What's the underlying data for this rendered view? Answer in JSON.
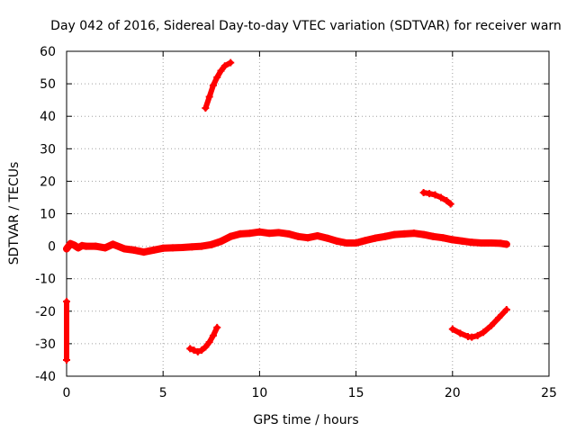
{
  "chart_data": {
    "type": "scatter",
    "title": "Day 042 of 2016, Sidereal Day-to-day VTEC variation (SDTVAR) for receiver warn",
    "xlabel": "GPS time / hours",
    "ylabel": "SDTVAR / TECUs",
    "xlim": [
      0,
      25
    ],
    "ylim": [
      -40,
      60
    ],
    "xticks": [
      0,
      5,
      10,
      15,
      20,
      25
    ],
    "yticks": [
      -40,
      -30,
      -20,
      -10,
      0,
      10,
      20,
      30,
      40,
      50,
      60
    ],
    "grid": true,
    "legend": "none",
    "marker_color": "#ff0000",
    "series": [
      {
        "name": "main-band",
        "x": [
          0.0,
          0.2,
          0.4,
          0.6,
          0.8,
          1.0,
          1.5,
          2.0,
          2.4,
          3.0,
          3.5,
          4.0,
          4.5,
          5.0,
          5.5,
          6.0,
          6.5,
          7.0,
          7.5,
          8.0,
          8.5,
          9.0,
          9.5,
          10.0,
          10.5,
          11.0,
          11.5,
          12.0,
          12.5,
          13.0,
          13.5,
          14.0,
          14.5,
          15.0,
          15.5,
          16.0,
          16.5,
          17.0,
          17.5,
          18.0,
          18.5,
          19.0,
          19.5,
          20.0,
          20.5,
          21.0,
          21.5,
          22.0,
          22.5,
          22.8
        ],
        "y": [
          -0.8,
          0.8,
          0.3,
          -0.5,
          0.2,
          0.0,
          0.0,
          -0.5,
          0.6,
          -0.8,
          -1.2,
          -1.8,
          -1.2,
          -0.6,
          -0.5,
          -0.4,
          -0.2,
          0.0,
          0.5,
          1.5,
          3.0,
          3.8,
          4.0,
          4.4,
          4.0,
          4.2,
          3.8,
          3.0,
          2.6,
          3.2,
          2.5,
          1.6,
          1.0,
          1.0,
          1.8,
          2.5,
          3.0,
          3.6,
          3.8,
          4.0,
          3.6,
          3.0,
          2.6,
          2.0,
          1.6,
          1.2,
          1.0,
          1.0,
          0.9,
          0.6
        ]
      },
      {
        "name": "arc-upper-7h",
        "x": [
          7.2,
          7.4,
          7.6,
          7.8,
          8.0,
          8.2,
          8.5
        ],
        "y": [
          42.5,
          46.0,
          49.5,
          52.0,
          54.0,
          55.5,
          56.5
        ]
      },
      {
        "name": "arc-lower-7h",
        "x": [
          6.4,
          6.6,
          6.8,
          7.0,
          7.2,
          7.4,
          7.6,
          7.8
        ],
        "y": [
          -31.5,
          -32.0,
          -32.5,
          -32.0,
          -31.0,
          -29.5,
          -27.5,
          -25.0
        ]
      },
      {
        "name": "arc-upper-19h",
        "x": [
          18.5,
          18.8,
          19.1,
          19.4,
          19.7,
          19.9
        ],
        "y": [
          16.5,
          16.2,
          15.8,
          15.0,
          14.0,
          13.0
        ]
      },
      {
        "name": "arc-lower-20h",
        "x": [
          20.0,
          20.4,
          20.8,
          21.0,
          21.3,
          21.6,
          22.0,
          22.4,
          22.8
        ],
        "y": [
          -25.5,
          -26.8,
          -27.8,
          -28.0,
          -27.5,
          -26.5,
          -24.5,
          -22.0,
          -19.5
        ]
      },
      {
        "name": "edge-points",
        "x": [
          0.0,
          0.0
        ],
        "y": [
          -17.0,
          -35.0
        ]
      }
    ]
  }
}
